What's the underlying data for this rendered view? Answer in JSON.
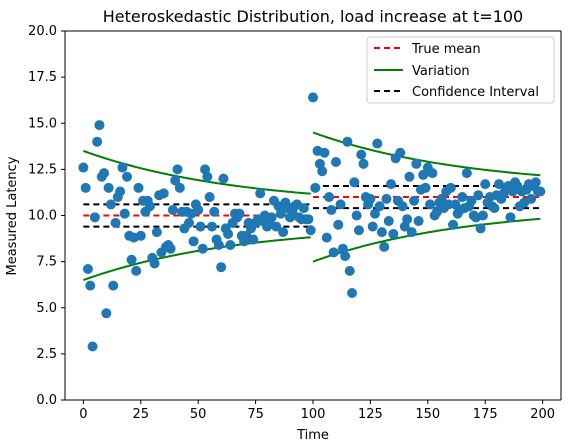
{
  "chart_data": {
    "type": "scatter",
    "title": "Heteroskedastic Distribution, load increase at t=100",
    "xlabel": "Time",
    "ylabel": "Measured Latency",
    "xlim": [
      -8,
      208
    ],
    "ylim": [
      0,
      20
    ],
    "xticks": [
      0,
      25,
      50,
      75,
      100,
      125,
      150,
      175,
      200
    ],
    "yticks": [
      0,
      2.5,
      5,
      7.5,
      10,
      12.5,
      15,
      17.5,
      20
    ],
    "xtick_labels": [
      "0",
      "25",
      "50",
      "75",
      "100",
      "125",
      "150",
      "175",
      "200"
    ],
    "ytick_labels": [
      "0.0",
      "2.5",
      "5.0",
      "7.5",
      "10.0",
      "12.5",
      "15.0",
      "17.5",
      "20.0"
    ],
    "grid": false,
    "legend_position": "top-right",
    "legend": [
      "True mean",
      "Variation",
      "Confidence Interval"
    ],
    "colors": {
      "points": "#1f77b4",
      "true_mean": "#ff0000",
      "variation": "#008000",
      "confidence": "#000000"
    },
    "segments": [
      {
        "t_start": 0,
        "t_end": 99,
        "true_mean": 10.0,
        "variation_start": 3.5,
        "variation_end": 0.5,
        "variation_decay": 0.015,
        "ci_lower": 9.4,
        "ci_upper": 10.6
      },
      {
        "t_start": 100,
        "t_end": 199,
        "true_mean": 11.0,
        "variation_start": 3.5,
        "variation_end": 0.5,
        "variation_decay": 0.015,
        "ci_lower": 10.4,
        "ci_upper": 11.6
      }
    ],
    "points": [
      [
        0,
        12.6
      ],
      [
        1,
        11.5
      ],
      [
        2,
        7.1
      ],
      [
        3,
        6.2
      ],
      [
        4,
        2.9
      ],
      [
        5,
        9.9
      ],
      [
        6,
        14.0
      ],
      [
        7,
        14.9
      ],
      [
        8,
        12.1
      ],
      [
        9,
        12.3
      ],
      [
        10,
        4.7
      ],
      [
        11,
        11.5
      ],
      [
        12,
        10.6
      ],
      [
        13,
        6.2
      ],
      [
        14,
        9.6
      ],
      [
        15,
        11.0
      ],
      [
        16,
        11.3
      ],
      [
        17,
        12.6
      ],
      [
        18,
        10.1
      ],
      [
        19,
        12.1
      ],
      [
        20,
        8.9
      ],
      [
        21,
        7.6
      ],
      [
        22,
        8.8
      ],
      [
        23,
        7.0
      ],
      [
        24,
        11.5
      ],
      [
        25,
        8.9
      ],
      [
        26,
        10.8
      ],
      [
        27,
        10.2
      ],
      [
        28,
        10.8
      ],
      [
        29,
        10.5
      ],
      [
        30,
        7.7
      ],
      [
        31,
        7.4
      ],
      [
        32,
        9.1
      ],
      [
        33,
        11.1
      ],
      [
        34,
        8.0
      ],
      [
        35,
        11.2
      ],
      [
        36,
        8.3
      ],
      [
        37,
        8.4
      ],
      [
        38,
        8.2
      ],
      [
        39,
        10.3
      ],
      [
        40,
        11.9
      ],
      [
        41,
        12.5
      ],
      [
        42,
        11.5
      ],
      [
        43,
        10.2
      ],
      [
        44,
        9.3
      ],
      [
        45,
        10.2
      ],
      [
        46,
        9.6
      ],
      [
        47,
        10.1
      ],
      [
        48,
        8.6
      ],
      [
        49,
        10.6
      ],
      [
        50,
        10.3
      ],
      [
        51,
        9.4
      ],
      [
        52,
        8.2
      ],
      [
        53,
        12.5
      ],
      [
        54,
        12.1
      ],
      [
        55,
        11.0
      ],
      [
        56,
        9.4
      ],
      [
        57,
        10.2
      ],
      [
        58,
        8.7
      ],
      [
        59,
        8.4
      ],
      [
        60,
        7.2
      ],
      [
        61,
        12.0
      ],
      [
        62,
        9.3
      ],
      [
        63,
        9.0
      ],
      [
        64,
        8.4
      ],
      [
        65,
        9.6
      ],
      [
        66,
        10.1
      ],
      [
        67,
        9.9
      ],
      [
        68,
        10.1
      ],
      [
        69,
        8.9
      ],
      [
        70,
        8.6
      ],
      [
        71,
        8.9
      ],
      [
        72,
        9.6
      ],
      [
        73,
        9.3
      ],
      [
        74,
        8.7
      ],
      [
        75,
        9.6
      ],
      [
        76,
        9.8
      ],
      [
        77,
        11.2
      ],
      [
        78,
        9.7
      ],
      [
        79,
        10.0
      ],
      [
        80,
        9.4
      ],
      [
        81,
        9.6
      ],
      [
        82,
        9.9
      ],
      [
        83,
        10.8
      ],
      [
        84,
        9.4
      ],
      [
        85,
        10.5
      ],
      [
        86,
        10.1
      ],
      [
        87,
        9.1
      ],
      [
        88,
        10.7
      ],
      [
        89,
        10.4
      ],
      [
        90,
        9.9
      ],
      [
        91,
        10.2
      ],
      [
        92,
        10.5
      ],
      [
        93,
        10.6
      ],
      [
        94,
        9.9
      ],
      [
        95,
        9.8
      ],
      [
        96,
        10.4
      ],
      [
        97,
        9.8
      ],
      [
        98,
        9.8
      ],
      [
        99,
        9.2
      ],
      [
        100,
        16.4
      ],
      [
        101,
        11.5
      ],
      [
        102,
        13.5
      ],
      [
        103,
        12.8
      ],
      [
        104,
        12.4
      ],
      [
        105,
        13.4
      ],
      [
        106,
        8.8
      ],
      [
        107,
        11.0
      ],
      [
        108,
        10.3
      ],
      [
        109,
        8.0
      ],
      [
        110,
        12.9
      ],
      [
        111,
        9.5
      ],
      [
        112,
        10.6
      ],
      [
        113,
        8.2
      ],
      [
        114,
        7.8
      ],
      [
        115,
        14.0
      ],
      [
        116,
        7.0
      ],
      [
        117,
        5.8
      ],
      [
        118,
        11.8
      ],
      [
        119,
        10.0
      ],
      [
        120,
        9.2
      ],
      [
        121,
        13.3
      ],
      [
        122,
        12.8
      ],
      [
        123,
        11.0
      ],
      [
        124,
        10.6
      ],
      [
        125,
        10.9
      ],
      [
        126,
        9.4
      ],
      [
        127,
        10.1
      ],
      [
        128,
        13.9
      ],
      [
        129,
        10.5
      ],
      [
        130,
        9.1
      ],
      [
        131,
        8.3
      ],
      [
        132,
        10.9
      ],
      [
        133,
        9.7
      ],
      [
        134,
        11.7
      ],
      [
        135,
        9.0
      ],
      [
        136,
        13.1
      ],
      [
        137,
        10.8
      ],
      [
        138,
        13.4
      ],
      [
        139,
        10.5
      ],
      [
        140,
        9.4
      ],
      [
        141,
        9.8
      ],
      [
        142,
        12.1
      ],
      [
        143,
        9.1
      ],
      [
        144,
        10.8
      ],
      [
        145,
        12.8
      ],
      [
        146,
        9.7
      ],
      [
        147,
        11.4
      ],
      [
        148,
        12.2
      ],
      [
        149,
        11.5
      ],
      [
        150,
        12.6
      ],
      [
        151,
        10.6
      ],
      [
        152,
        12.3
      ],
      [
        153,
        10.0
      ],
      [
        154,
        10.2
      ],
      [
        155,
        10.7
      ],
      [
        156,
        10.9
      ],
      [
        157,
        10.4
      ],
      [
        158,
        11.3
      ],
      [
        159,
        10.6
      ],
      [
        160,
        11.5
      ],
      [
        161,
        9.5
      ],
      [
        162,
        10.6
      ],
      [
        163,
        10.1
      ],
      [
        164,
        10.3
      ],
      [
        165,
        11.0
      ],
      [
        166,
        10.4
      ],
      [
        167,
        12.3
      ],
      [
        168,
        10.5
      ],
      [
        169,
        10.8
      ],
      [
        170,
        10.0
      ],
      [
        171,
        9.9
      ],
      [
        172,
        11.1
      ],
      [
        173,
        9.3
      ],
      [
        174,
        10.0
      ],
      [
        175,
        11.7
      ],
      [
        176,
        10.7
      ],
      [
        177,
        11.0
      ],
      [
        178,
        10.5
      ],
      [
        179,
        10.4
      ],
      [
        180,
        11.1
      ],
      [
        181,
        11.7
      ],
      [
        182,
        10.9
      ],
      [
        183,
        11.2
      ],
      [
        184,
        11.5
      ],
      [
        185,
        11.6
      ],
      [
        186,
        9.9
      ],
      [
        187,
        11.3
      ],
      [
        188,
        11.8
      ],
      [
        189,
        11.6
      ],
      [
        190,
        10.5
      ],
      [
        191,
        11.3
      ],
      [
        192,
        10.7
      ],
      [
        193,
        11.4
      ],
      [
        194,
        11.7
      ],
      [
        195,
        10.9
      ],
      [
        196,
        11.6
      ],
      [
        197,
        11.8
      ],
      [
        198,
        11.3
      ],
      [
        199,
        11.3
      ]
    ]
  }
}
